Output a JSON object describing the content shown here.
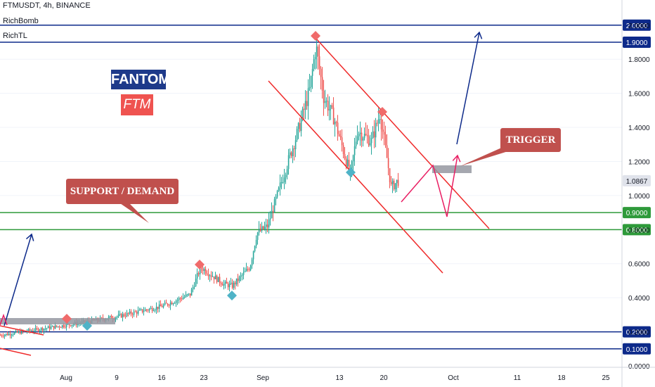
{
  "header": {
    "symbol_line": "FTMUSDT, 4h, BINANCE",
    "indicators": [
      "RichBomb",
      "RichTL"
    ]
  },
  "brand": {
    "name": "FANTOM",
    "ticker": "FTM",
    "name_bg": "#1e3a8a",
    "ticker_bg": "#ef5350"
  },
  "labels": {
    "support": "SUPPORT / DEMAND",
    "trigger": "TRIGGER",
    "label_bg": "#c0504d"
  },
  "colors": {
    "up": "#26a69a",
    "down": "#ef5350",
    "channel": "#ef2b2b",
    "blue_line": "#0d2a8a",
    "green_line": "#2e9a3a",
    "pink": "#e91e63",
    "box": "#9598a1",
    "current_price_bg": "#e0e3eb"
  },
  "chart_data": {
    "type": "candlestick",
    "title": "FTMUSDT, 4h, BINANCE",
    "x_ticks": [
      "Aug",
      "9",
      "16",
      "23",
      "Sep",
      "13",
      "20",
      "Oct",
      "11",
      "18",
      "25"
    ],
    "y_ticks": [
      "0.0000",
      "0.2000",
      "0.4000",
      "0.6000",
      "0.8000",
      "1.0000",
      "1.2000",
      "1.4000",
      "1.6000",
      "1.8000",
      "2.0000"
    ],
    "ylim": [
      0.0,
      2.0
    ],
    "current_price": "1.0867",
    "highlighted_levels": [
      {
        "value": "2.0000",
        "color": "blue"
      },
      {
        "value": "1.9000",
        "color": "blue"
      },
      {
        "value": "0.9000",
        "color": "green"
      },
      {
        "value": "0.8000",
        "color": "green"
      },
      {
        "value": "0.2000",
        "color": "blue"
      },
      {
        "value": "0.1000",
        "color": "blue"
      }
    ],
    "price_path": [
      [
        "Jul 26",
        0.18
      ],
      [
        "Aug 1",
        0.24
      ],
      [
        "Aug 5",
        0.26
      ],
      [
        "Aug 10",
        0.29
      ],
      [
        "Aug 16",
        0.35
      ],
      [
        "Aug 19",
        0.42
      ],
      [
        "Aug 22",
        0.58
      ],
      [
        "Aug 25",
        0.48
      ],
      [
        "Aug 27",
        0.47
      ],
      [
        "Aug 29",
        0.58
      ],
      [
        "Aug 31",
        0.78
      ],
      [
        "Sep 2",
        0.82
      ],
      [
        "Sep 4",
        1.08
      ],
      [
        "Sep 6",
        1.4
      ],
      [
        "Sep 8",
        1.62
      ],
      [
        "Sep 9",
        1.88
      ],
      [
        "Sep 10",
        1.58
      ],
      [
        "Sep 12",
        1.45
      ],
      [
        "Sep 14",
        1.12
      ],
      [
        "Sep 16",
        1.38
      ],
      [
        "Sep 18",
        1.32
      ],
      [
        "Sep 19",
        1.48
      ],
      [
        "Sep 20",
        1.22
      ],
      [
        "Sep 21",
        1.05
      ],
      [
        "Sep 22",
        1.0867
      ]
    ]
  }
}
